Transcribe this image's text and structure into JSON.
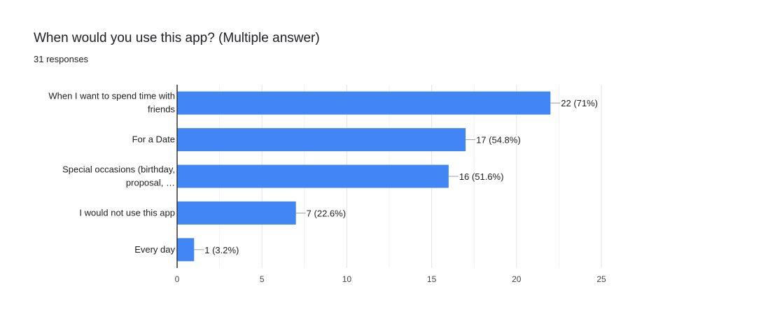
{
  "header": {
    "question": "When would you use this app? (Multiple answer)",
    "responses": "31 responses"
  },
  "chart_data": {
    "type": "bar",
    "orientation": "horizontal",
    "categories": [
      [
        "When I want to spend time with",
        "friends"
      ],
      [
        "For a Date"
      ],
      [
        "Special occasions (birthday,",
        "proposal, …"
      ],
      [
        "I would not use this app"
      ],
      [
        "Every day"
      ]
    ],
    "values": [
      22,
      17,
      16,
      7,
      1
    ],
    "data_labels": [
      "22 (71%)",
      "17 (54.8%)",
      "16 (51.6%)",
      "7 (22.6%)",
      "1 (3.2%)"
    ],
    "xticks": [
      "0",
      "5",
      "10",
      "15",
      "20",
      "25"
    ],
    "xlim": [
      0,
      25
    ],
    "grid": true,
    "bar_color": "#4285f4"
  }
}
